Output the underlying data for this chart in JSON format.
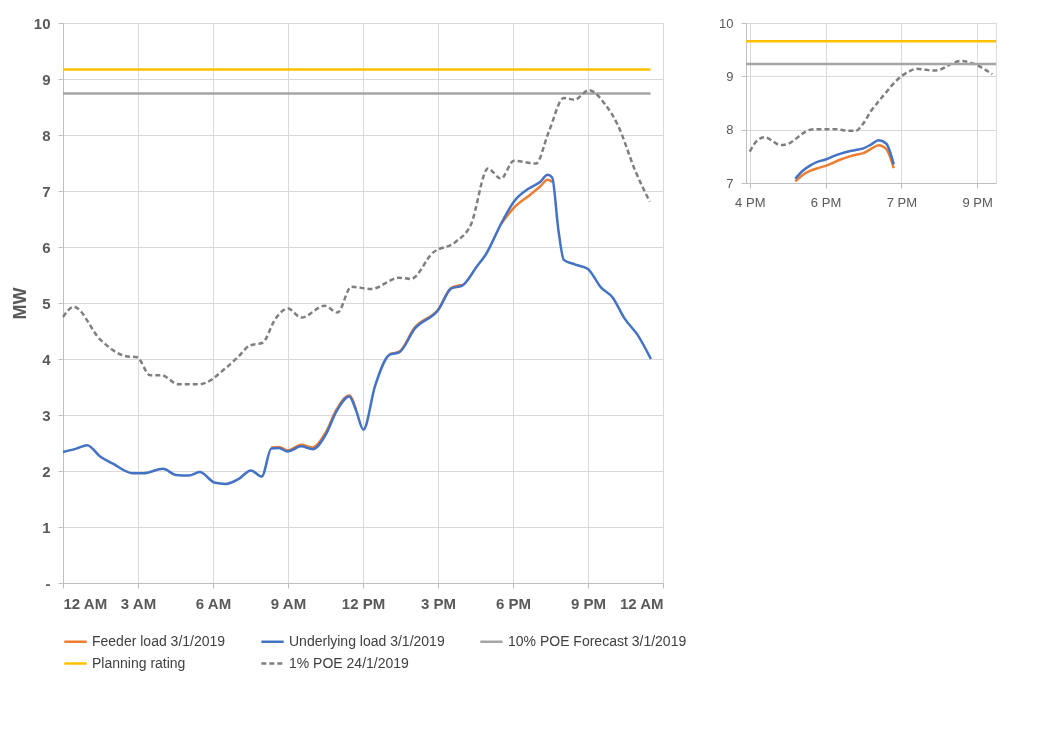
{
  "chart_data": [
    {
      "type": "line",
      "ylabel": "MW",
      "xlim": [
        "2019-01-03T00:00",
        "2019-01-04T00:00"
      ],
      "ylim": [
        0,
        10
      ],
      "xticks": [
        {
          "value": "2019-01-03T00:00",
          "label": "12 AM"
        },
        {
          "value": "2019-01-03T03:00",
          "label": "3 AM"
        },
        {
          "value": "2019-01-03T06:00",
          "label": "6 AM"
        },
        {
          "value": "2019-01-03T09:00",
          "label": "9 AM"
        },
        {
          "value": "2019-01-03T12:00",
          "label": "12 PM"
        },
        {
          "value": "2019-01-03T15:00",
          "label": "3 PM"
        },
        {
          "value": "2019-01-03T18:00",
          "label": "6 PM"
        },
        {
          "value": "2019-01-03T21:00",
          "label": "9 PM"
        },
        {
          "value": "2019-01-04T00:00",
          "label": "12 AM"
        }
      ],
      "yticks": [
        {
          "value": 0,
          "label": "-"
        },
        1,
        2,
        3,
        4,
        5,
        6,
        7,
        8,
        9,
        10
      ],
      "grid": true,
      "legend": "bottom",
      "x": [
        "2019-01-03T00:00",
        "2019-01-03T00:32",
        "2019-01-03T00:58",
        "2019-01-03T01:29",
        "2019-01-03T02:00",
        "2019-01-03T02:47",
        "2019-01-03T03:13",
        "2019-01-03T04:00",
        "2019-01-03T04:31",
        "2019-01-03T05:02",
        "2019-01-03T05:28",
        "2019-01-03T06:05",
        "2019-01-03T06:31",
        "2019-01-03T07:02",
        "2019-01-03T07:31",
        "2019-01-03T07:57",
        "2019-01-03T08:20",
        "2019-01-03T08:38",
        "2019-01-03T08:59",
        "2019-01-03T09:32",
        "2019-01-03T09:59",
        "2019-01-03T10:30",
        "2019-01-03T10:56",
        "2019-01-03T11:27",
        "2019-01-03T11:43",
        "2019-01-03T12:01",
        "2019-01-03T12:29",
        "2019-01-03T13:04",
        "2019-01-03T13:27",
        "2019-01-03T14:04",
        "2019-01-03T15:01",
        "2019-01-03T15:32",
        "2019-01-03T15:58",
        "2019-01-03T16:34",
        "2019-01-03T16:55",
        "2019-01-03T17:31",
        "2019-01-03T18:02",
        "2019-01-03T18:39",
        "2019-01-03T19:05",
        "2019-01-03T19:23",
        "2019-01-03T19:34",
        "2019-01-03T19:49",
        "2019-01-03T20:02",
        "2019-01-03T20:28",
        "2019-01-03T20:59",
        "2019-01-03T21:31",
        "2019-01-03T21:59",
        "2019-01-03T22:28",
        "2019-01-03T22:59",
        "2019-01-03T23:31"
      ],
      "series": [
        {
          "name": "Feeder load 3/1/2019",
          "color": "#ed7d31",
          "line_style": "solid",
          "values": [
            null,
            null,
            null,
            null,
            null,
            null,
            null,
            null,
            null,
            null,
            null,
            null,
            null,
            null,
            null,
            null,
            2.42,
            2.43,
            2.37,
            2.47,
            2.42,
            2.68,
            3.09,
            3.35,
            3.1,
            null,
            null,
            4.09,
            4.13,
            4.56,
            4.89,
            5.27,
            5.32,
            null,
            null,
            6.41,
            6.7,
            6.92,
            7.08,
            7.2,
            7.16,
            null,
            null,
            null,
            null,
            null,
            null,
            null,
            null,
            null
          ]
        },
        {
          "name": "Underlying load 3/1/2019",
          "color": "#4472c4",
          "line_style": "solid",
          "values": [
            2.34,
            2.4,
            2.46,
            2.26,
            2.13,
            1.96,
            1.96,
            2.04,
            1.93,
            1.92,
            1.98,
            1.79,
            1.77,
            1.86,
            2.01,
            1.9,
            2.4,
            2.41,
            2.35,
            2.44,
            2.39,
            2.64,
            3.06,
            3.33,
            3.09,
            2.74,
            3.52,
            4.08,
            4.12,
            4.54,
            4.88,
            5.26,
            5.31,
            5.66,
            5.87,
            6.41,
            6.81,
            7.05,
            7.16,
            7.29,
            7.24,
            6.3,
            5.77,
            5.69,
            5.61,
            5.28,
            5.1,
            4.72,
            4.43,
            4.0
          ]
        },
        {
          "name": "10% POE Forecast 3/1/2019",
          "color": "#a5a5a5",
          "line_style": "solid",
          "x": [
            "2019-01-03T00:00",
            "2019-01-03T23:30"
          ],
          "values": [
            8.74,
            8.74
          ]
        },
        {
          "name": "Planning rating",
          "color": "#ffc000",
          "line_style": "solid",
          "x": [
            "2019-01-03T00:00",
            "2019-01-03T23:30"
          ],
          "values": [
            9.17,
            9.17
          ]
        },
        {
          "name": "1% POE 24/1/2019",
          "color": "#7f7f7f",
          "line_style": "dashed",
          "x": [
            "2019-01-03T00:00",
            "2019-01-03T00:26",
            "2019-01-03T01:29",
            "2019-01-03T02:31",
            "2019-01-03T02:58",
            "2019-01-03T03:29",
            "2019-01-03T03:57",
            "2019-01-03T04:36",
            "2019-01-03T05:28",
            "2019-01-03T06:31",
            "2019-01-03T07:02",
            "2019-01-03T07:28",
            "2019-01-03T07:59",
            "2019-01-03T08:30",
            "2019-01-03T09:00",
            "2019-01-03T09:32",
            "2019-01-03T10:28",
            "2019-01-03T10:59",
            "2019-01-03T11:32",
            "2019-01-03T12:19",
            "2019-01-03T13:27",
            "2019-01-03T13:55",
            "2019-01-03T14:48",
            "2019-01-03T15:42",
            "2019-01-03T16:19",
            "2019-01-03T17:00",
            "2019-01-03T17:31",
            "2019-01-03T18:02",
            "2019-01-03T18:55",
            "2019-01-03T19:26",
            "2019-01-03T20:02",
            "2019-01-03T20:28",
            "2019-01-03T21:02",
            "2019-01-03T21:41",
            "2019-01-03T22:12",
            "2019-01-03T22:53",
            "2019-01-03T23:28"
          ],
          "values": [
            4.75,
            4.93,
            4.35,
            4.05,
            4.03,
            3.71,
            3.71,
            3.55,
            3.55,
            3.84,
            4.05,
            4.24,
            4.29,
            4.72,
            4.9,
            4.74,
            4.95,
            4.83,
            5.29,
            5.25,
            5.45,
            5.43,
            5.9,
            6.09,
            6.4,
            7.4,
            7.22,
            7.54,
            7.49,
            8.06,
            8.66,
            8.63,
            8.8,
            8.55,
            8.17,
            7.37,
            6.81
          ]
        }
      ]
    },
    {
      "type": "line",
      "ylim": [
        7,
        10
      ],
      "yticks": [
        7,
        8,
        9,
        10
      ],
      "grid": true,
      "categories": [
        "4 PM",
        null,
        null,
        null,
        null,
        null,
        null,
        null,
        null,
        null,
        "6 PM",
        null,
        null,
        null,
        null,
        null,
        null,
        null,
        null,
        null,
        "7 PM",
        null,
        null,
        null,
        null,
        null,
        null,
        null,
        null,
        null,
        "9 PM",
        null,
        null
      ],
      "ref_lines": [
        {
          "axis": "y",
          "value": 9.66,
          "color": "#ffc000"
        },
        {
          "axis": "y",
          "value": 9.23,
          "color": "#a5a5a5"
        }
      ],
      "series": [
        {
          "color": "#7f7f7f",
          "line_style": "dashed",
          "values": [
            7.59,
            7.8,
            7.86,
            7.79,
            7.71,
            7.73,
            7.82,
            7.93,
            8.0,
            8.01,
            8.01,
            8.01,
            8.0,
            7.98,
            7.98,
            8.12,
            8.35,
            8.53,
            8.7,
            8.87,
            9.0,
            9.09,
            9.14,
            9.13,
            9.11,
            9.12,
            9.19,
            9.26,
            9.29,
            9.26,
            9.21,
            9.13,
            9.04
          ]
        },
        {
          "color": "#ed7d31",
          "line_style": "solid",
          "values": [
            null,
            null,
            null,
            null,
            null,
            null,
            7.03,
            7.15,
            7.23,
            7.28,
            7.32,
            7.38,
            7.44,
            7.49,
            7.53,
            7.56,
            7.64,
            7.71,
            7.64,
            7.28,
            null,
            null,
            null,
            null,
            null,
            null,
            null,
            null,
            null,
            null,
            null,
            null,
            null
          ]
        },
        {
          "color": "#4472c4",
          "line_style": "solid",
          "values": [
            null,
            null,
            null,
            null,
            null,
            null,
            7.08,
            7.23,
            7.33,
            7.4,
            7.44,
            7.5,
            7.55,
            7.59,
            7.62,
            7.65,
            7.72,
            7.8,
            7.74,
            7.35,
            null,
            null,
            null,
            null,
            null,
            null,
            null,
            null,
            null,
            null,
            null,
            null,
            null
          ]
        }
      ]
    }
  ]
}
